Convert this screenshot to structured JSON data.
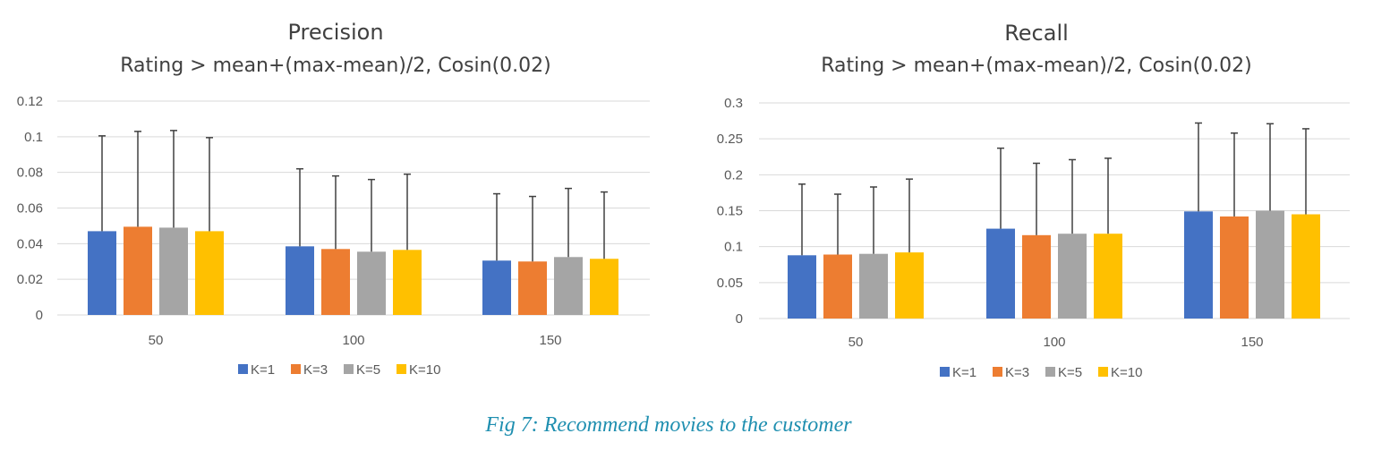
{
  "colors": {
    "series": [
      "#4472c4",
      "#ed7d31",
      "#a5a5a5",
      "#ffc000"
    ],
    "grid": "#d9d9d9",
    "axis_text": "#595959",
    "title_text": "#404040",
    "error_bar": "#404040"
  },
  "caption": "Fig 7: Recommend movies to the customer",
  "chart_data": [
    {
      "type": "bar",
      "title": "Precision",
      "subtitle": "Rating > mean+(max-mean)/2, Cosin(0.02)",
      "categories": [
        "50",
        "100",
        "150"
      ],
      "ylim": [
        0,
        0.12
      ],
      "yticks": [
        "0",
        "0.02",
        "0.04",
        "0.06",
        "0.08",
        "0.1",
        "0.12"
      ],
      "grid": true,
      "legend": "bottom",
      "series": [
        {
          "name": "K=1",
          "values": [
            0.047,
            0.0385,
            0.0305
          ],
          "error_top": [
            0.1005,
            0.082,
            0.068
          ]
        },
        {
          "name": "K=3",
          "values": [
            0.0495,
            0.037,
            0.03
          ],
          "error_top": [
            0.103,
            0.078,
            0.0665
          ]
        },
        {
          "name": "K=5",
          "values": [
            0.049,
            0.0355,
            0.0325
          ],
          "error_top": [
            0.1035,
            0.076,
            0.071
          ]
        },
        {
          "name": "K=10",
          "values": [
            0.047,
            0.0365,
            0.0315
          ],
          "error_top": [
            0.0995,
            0.079,
            0.069
          ]
        }
      ]
    },
    {
      "type": "bar",
      "title": "Recall",
      "subtitle": "Rating > mean+(max-mean)/2, Cosin(0.02)",
      "categories": [
        "50",
        "100",
        "150"
      ],
      "ylim": [
        0,
        0.3
      ],
      "yticks": [
        "0",
        "0.05",
        "0.1",
        "0.15",
        "0.2",
        "0.25",
        "0.3"
      ],
      "grid": true,
      "legend": "bottom",
      "series": [
        {
          "name": "K=1",
          "values": [
            0.088,
            0.125,
            0.149
          ],
          "error_top": [
            0.187,
            0.237,
            0.272
          ]
        },
        {
          "name": "K=3",
          "values": [
            0.089,
            0.116,
            0.142
          ],
          "error_top": [
            0.173,
            0.216,
            0.258
          ]
        },
        {
          "name": "K=5",
          "values": [
            0.09,
            0.118,
            0.15
          ],
          "error_top": [
            0.183,
            0.221,
            0.271
          ]
        },
        {
          "name": "K=10",
          "values": [
            0.092,
            0.118,
            0.145
          ],
          "error_top": [
            0.194,
            0.223,
            0.264
          ]
        }
      ]
    }
  ]
}
